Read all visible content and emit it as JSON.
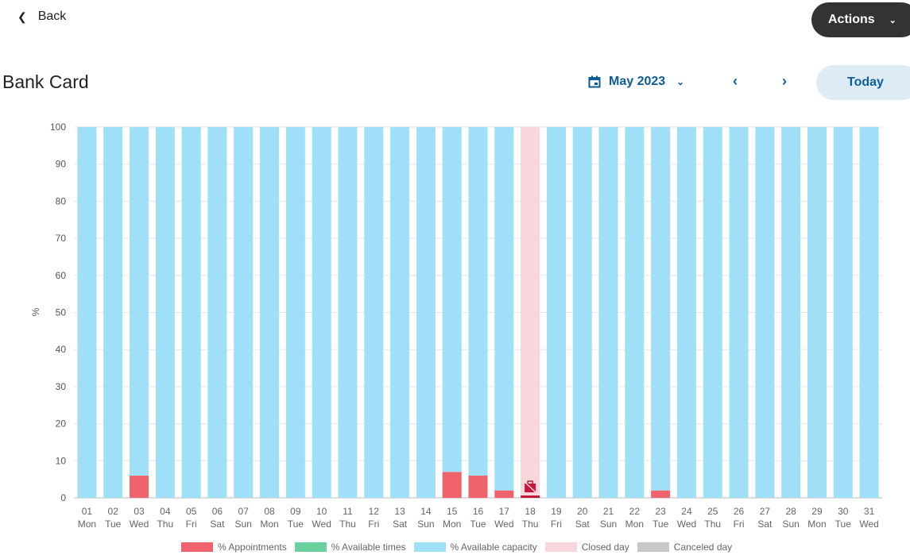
{
  "header": {
    "back_label": "Back",
    "actions_label": "Actions",
    "title": "Bank Card",
    "month": "May 2023",
    "today_label": "Today"
  },
  "colors": {
    "appointments": "#f0626c",
    "available_times": "#6ad09d",
    "capacity": "#9fdff7",
    "closed": "#f9d5dc",
    "canceled": "#c8c8c8",
    "closed_marker": "#c2183b"
  },
  "chart_data": {
    "type": "bar",
    "stacked": true,
    "ylabel": "%",
    "ylim": [
      0,
      100
    ],
    "yticks": [
      0,
      10,
      20,
      30,
      40,
      50,
      60,
      70,
      80,
      90,
      100
    ],
    "grid": true,
    "categories": [
      "01",
      "02",
      "03",
      "04",
      "05",
      "06",
      "07",
      "08",
      "09",
      "10",
      "11",
      "12",
      "13",
      "14",
      "15",
      "16",
      "17",
      "18",
      "19",
      "20",
      "21",
      "22",
      "23",
      "24",
      "25",
      "26",
      "27",
      "28",
      "29",
      "30",
      "31"
    ],
    "weekdays": [
      "Mon",
      "Tue",
      "Wed",
      "Thu",
      "Fri",
      "Sat",
      "Sun",
      "Mon",
      "Tue",
      "Wed",
      "Thu",
      "Fri",
      "Sat",
      "Sun",
      "Mon",
      "Tue",
      "Wed",
      "Thu",
      "Fri",
      "Sat",
      "Sun",
      "Mon",
      "Tue",
      "Wed",
      "Thu",
      "Fri",
      "Sat",
      "Sun",
      "Mon",
      "Tue",
      "Wed"
    ],
    "series": [
      {
        "name": "% Appointments",
        "values": [
          0,
          0,
          6,
          0,
          0,
          0,
          0,
          0,
          0,
          0,
          0,
          0,
          0,
          0,
          7,
          6,
          2,
          0,
          0,
          0,
          0,
          0,
          2,
          0,
          0,
          0,
          0,
          0,
          0,
          0,
          0
        ]
      },
      {
        "name": "% Available times",
        "values": [
          0,
          0,
          0,
          0,
          0,
          0,
          0,
          0,
          0,
          0,
          0,
          0,
          0,
          0,
          0,
          0,
          0,
          0,
          0,
          0,
          0,
          0,
          0,
          0,
          0,
          0,
          0,
          0,
          0,
          0,
          0
        ]
      },
      {
        "name": "% Available capacity",
        "values": [
          100,
          100,
          94,
          100,
          100,
          100,
          100,
          100,
          100,
          100,
          100,
          100,
          100,
          100,
          93,
          94,
          98,
          0,
          100,
          100,
          100,
          100,
          98,
          100,
          100,
          100,
          100,
          100,
          100,
          100,
          100
        ]
      }
    ],
    "closed_days": [
      "18"
    ],
    "canceled_days": [],
    "legend": [
      "% Appointments",
      "% Available times",
      "% Available capacity",
      "Closed day",
      "Canceled day"
    ],
    "legend_position": "bottom"
  }
}
